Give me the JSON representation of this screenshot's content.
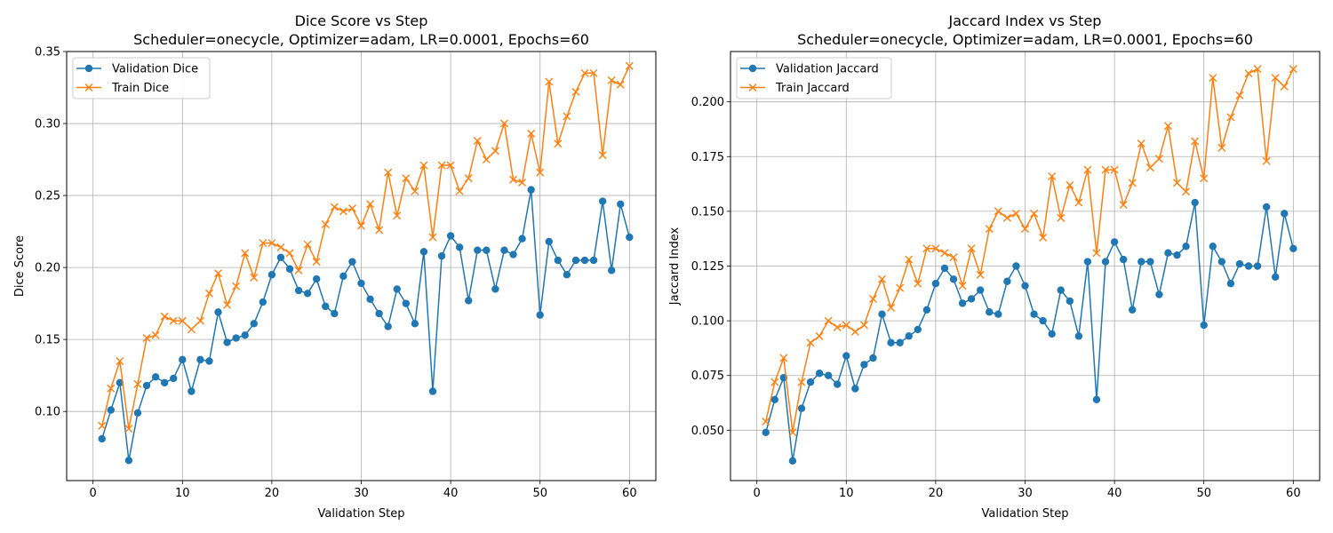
{
  "chart_data": [
    {
      "type": "line",
      "title": "Dice Score vs Step",
      "subtitle": "Scheduler=onecycle, Optimizer=adam, LR=0.0001, Epochs=60",
      "xlabel": "Validation Step",
      "ylabel": "Dice Score",
      "xlim": [
        -2.95,
        62.95
      ],
      "ylim": [
        0.052,
        0.35
      ],
      "xticks": [
        0,
        10,
        20,
        30,
        40,
        50,
        60
      ],
      "yticks": [
        0.1,
        0.15,
        0.2,
        0.25,
        0.3,
        0.35
      ],
      "ytick_labels": [
        "0.10",
        "0.15",
        "0.20",
        "0.25",
        "0.30",
        "0.35"
      ],
      "grid": true,
      "legend_position": "upper-left",
      "x": [
        1,
        2,
        3,
        4,
        5,
        6,
        7,
        8,
        9,
        10,
        11,
        12,
        13,
        14,
        15,
        16,
        17,
        18,
        19,
        20,
        21,
        22,
        23,
        24,
        25,
        26,
        27,
        28,
        29,
        30,
        31,
        32,
        33,
        34,
        35,
        36,
        37,
        38,
        39,
        40,
        41,
        42,
        43,
        44,
        45,
        46,
        47,
        48,
        49,
        50,
        51,
        52,
        53,
        54,
        55,
        56,
        57,
        58,
        59,
        60
      ],
      "series": [
        {
          "name": "Validation Dice",
          "color": "#1f77b4",
          "marker": "circle",
          "values": [
            0.081,
            0.101,
            0.12,
            0.066,
            0.099,
            0.118,
            0.124,
            0.12,
            0.123,
            0.136,
            0.114,
            0.136,
            0.135,
            0.169,
            0.148,
            0.151,
            0.153,
            0.161,
            0.176,
            0.195,
            0.207,
            0.199,
            0.184,
            0.182,
            0.192,
            0.173,
            0.168,
            0.194,
            0.204,
            0.189,
            0.178,
            0.168,
            0.159,
            0.185,
            0.175,
            0.161,
            0.211,
            0.114,
            0.208,
            0.222,
            0.214,
            0.177,
            0.212,
            0.212,
            0.185,
            0.212,
            0.209,
            0.22,
            0.254,
            0.167,
            0.218,
            0.205,
            0.195,
            0.205,
            0.205,
            0.205,
            0.246,
            0.198,
            0.244,
            0.221
          ]
        },
        {
          "name": "Train Dice",
          "color": "#ff7f0e",
          "marker": "x",
          "values": [
            0.09,
            0.116,
            0.135,
            0.088,
            0.119,
            0.151,
            0.153,
            0.166,
            0.163,
            0.163,
            0.157,
            0.163,
            0.182,
            0.196,
            0.174,
            0.187,
            0.21,
            0.193,
            0.217,
            0.217,
            0.214,
            0.21,
            0.198,
            0.216,
            0.204,
            0.23,
            0.242,
            0.239,
            0.241,
            0.229,
            0.244,
            0.226,
            0.266,
            0.236,
            0.262,
            0.253,
            0.271,
            0.221,
            0.271,
            0.271,
            0.253,
            0.262,
            0.288,
            0.275,
            0.281,
            0.3,
            0.261,
            0.259,
            0.293,
            0.266,
            0.329,
            0.286,
            0.305,
            0.322,
            0.335,
            0.335,
            0.278,
            0.33,
            0.327,
            0.34
          ]
        }
      ]
    },
    {
      "type": "line",
      "title": "Jaccard Index vs Step",
      "subtitle": "Scheduler=onecycle, Optimizer=adam, LR=0.0001, Epochs=60",
      "xlabel": "Validation Step",
      "ylabel": "Jaccard Index",
      "xlim": [
        -2.95,
        62.95
      ],
      "ylim": [
        0.027,
        0.223
      ],
      "xticks": [
        0,
        10,
        20,
        30,
        40,
        50,
        60
      ],
      "yticks": [
        0.05,
        0.075,
        0.1,
        0.125,
        0.15,
        0.175,
        0.2
      ],
      "ytick_labels": [
        "0.050",
        "0.075",
        "0.100",
        "0.125",
        "0.150",
        "0.175",
        "0.200"
      ],
      "grid": true,
      "legend_position": "upper-left",
      "x": [
        1,
        2,
        3,
        4,
        5,
        6,
        7,
        8,
        9,
        10,
        11,
        12,
        13,
        14,
        15,
        16,
        17,
        18,
        19,
        20,
        21,
        22,
        23,
        24,
        25,
        26,
        27,
        28,
        29,
        30,
        31,
        32,
        33,
        34,
        35,
        36,
        37,
        38,
        39,
        40,
        41,
        42,
        43,
        44,
        45,
        46,
        47,
        48,
        49,
        50,
        51,
        52,
        53,
        54,
        55,
        56,
        57,
        58,
        59,
        60
      ],
      "series": [
        {
          "name": "Validation Jaccard",
          "color": "#1f77b4",
          "marker": "circle",
          "values": [
            0.049,
            0.064,
            0.074,
            0.036,
            0.06,
            0.072,
            0.076,
            0.075,
            0.071,
            0.084,
            0.069,
            0.08,
            0.083,
            0.103,
            0.09,
            0.09,
            0.093,
            0.096,
            0.105,
            0.117,
            0.124,
            0.119,
            0.108,
            0.11,
            0.114,
            0.104,
            0.103,
            0.118,
            0.125,
            0.116,
            0.103,
            0.1,
            0.094,
            0.114,
            0.109,
            0.093,
            0.127,
            0.064,
            0.127,
            0.136,
            0.128,
            0.105,
            0.127,
            0.127,
            0.112,
            0.131,
            0.13,
            0.134,
            0.154,
            0.098,
            0.134,
            0.127,
            0.117,
            0.126,
            0.125,
            0.125,
            0.152,
            0.12,
            0.149,
            0.133
          ]
        },
        {
          "name": "Train Jaccard",
          "color": "#ff7f0e",
          "marker": "x",
          "values": [
            0.054,
            0.072,
            0.083,
            0.049,
            0.072,
            0.09,
            0.093,
            0.1,
            0.097,
            0.098,
            0.095,
            0.098,
            0.11,
            0.119,
            0.106,
            0.115,
            0.128,
            0.117,
            0.133,
            0.133,
            0.131,
            0.129,
            0.116,
            0.133,
            0.121,
            0.142,
            0.15,
            0.147,
            0.149,
            0.142,
            0.149,
            0.138,
            0.166,
            0.147,
            0.162,
            0.154,
            0.169,
            0.131,
            0.169,
            0.169,
            0.153,
            0.163,
            0.181,
            0.17,
            0.174,
            0.189,
            0.163,
            0.159,
            0.182,
            0.165,
            0.211,
            0.179,
            0.193,
            0.203,
            0.213,
            0.215,
            0.173,
            0.211,
            0.207,
            0.215
          ]
        }
      ]
    }
  ]
}
